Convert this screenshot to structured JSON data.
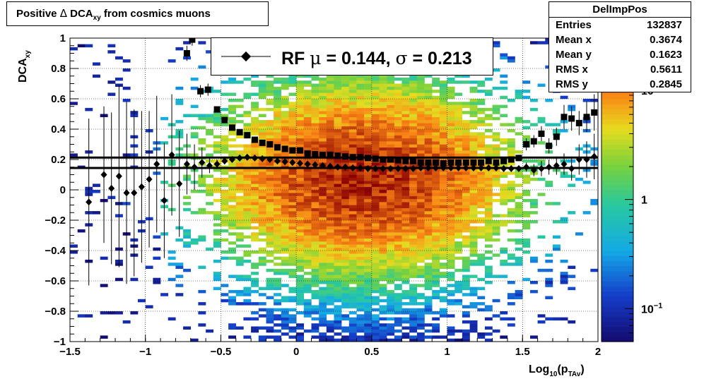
{
  "title": {
    "prefix": "Positive ",
    "delta": "Δ",
    "quantity": " DCA",
    "subscript": "xy",
    "suffix": " from cosmics muons"
  },
  "stats": {
    "name": "DelImpPos",
    "rows": [
      {
        "label": "Entries",
        "value": "132837"
      },
      {
        "label": "Mean x",
        "value": "0.3674"
      },
      {
        "label": "Mean y",
        "value": "0.1623"
      },
      {
        "label": "RMS x",
        "value": "0.5611"
      },
      {
        "label": "RMS y",
        "value": "0.2845"
      }
    ]
  },
  "legend": {
    "text_rf": "RF ",
    "mu": "μ",
    "text_mu_val": " =  0.144, ",
    "sigma": "σ",
    "text_sigma_val": " =   0.213"
  },
  "chart_data": {
    "type": "heatmap",
    "title": "Positive Δ DCA_xy from cosmics muons",
    "xlabel": "Log10(p_TAv)",
    "ylabel": "DCA_xy",
    "xlim": [
      -1.5,
      2.0
    ],
    "ylim": [
      -1.0,
      1.0
    ],
    "x_ticks": [
      -1.5,
      -1,
      -0.5,
      0,
      0.5,
      1,
      1.5,
      2
    ],
    "x_tick_labels": [
      "−1.5",
      "−1",
      "−0.5",
      "0",
      "0.5",
      "1",
      "1.5",
      "2"
    ],
    "y_ticks": [
      -1,
      -0.8,
      -0.6,
      -0.4,
      -0.2,
      0,
      0.2,
      0.4,
      0.6,
      0.8,
      1
    ],
    "y_tick_labels": [
      "−1",
      "−0.8",
      "−0.6",
      "−0.4",
      "−0.2",
      "0",
      "0.2",
      "0.4",
      "0.6",
      "0.8",
      "1"
    ],
    "grid": true,
    "z_scale": "log",
    "z_range": [
      0.05,
      30
    ],
    "z_tick_values": [
      0.1,
      1,
      10
    ],
    "z_tick_labels": [
      {
        "base": "10",
        "exp": "−1"
      },
      {
        "base": "1",
        "exp": ""
      },
      {
        "base": "10",
        "exp": ""
      }
    ],
    "density_peak": {
      "x": 0.45,
      "y": 0.08
    },
    "hlines": [
      0.144,
      0.213
    ],
    "series": [
      {
        "name": "Mean (squares)",
        "marker": "square",
        "x": [
          -0.725,
          -0.69,
          -0.635,
          -0.585,
          -0.525,
          -0.475,
          -0.425,
          -0.375,
          -0.325,
          -0.275,
          -0.225,
          -0.175,
          -0.125,
          -0.075,
          -0.025,
          0.025,
          0.075,
          0.125,
          0.175,
          0.225,
          0.275,
          0.325,
          0.375,
          0.425,
          0.475,
          0.525,
          0.575,
          0.625,
          0.675,
          0.725,
          0.775,
          0.825,
          0.875,
          0.925,
          0.975,
          1.025,
          1.075,
          1.125,
          1.175,
          1.225,
          1.275,
          1.325,
          1.375,
          1.425,
          1.475,
          1.525,
          1.575,
          1.625,
          1.675,
          1.725,
          1.775,
          1.825,
          1.875,
          1.925,
          1.975
        ],
        "y": [
          0.9,
          0.99,
          0.65,
          0.66,
          0.53,
          0.46,
          0.41,
          0.38,
          0.36,
          0.33,
          0.31,
          0.3,
          0.28,
          0.27,
          0.26,
          0.26,
          0.24,
          0.235,
          0.23,
          0.23,
          0.225,
          0.22,
          0.215,
          0.215,
          0.21,
          0.205,
          0.2,
          0.2,
          0.195,
          0.19,
          0.19,
          0.18,
          0.18,
          0.18,
          0.175,
          0.18,
          0.18,
          0.18,
          0.18,
          0.18,
          0.19,
          0.18,
          0.19,
          0.2,
          0.21,
          0.3,
          0.32,
          0.37,
          0.29,
          0.35,
          0.48,
          0.47,
          0.44,
          0.48,
          0.51
        ],
        "yerr": [
          0.05,
          0.04,
          0.04,
          0.04,
          0.02,
          0.015,
          0.01,
          0.01,
          0.01,
          0.01,
          0.01,
          0.01,
          0.01,
          0.01,
          0.01,
          0.01,
          0.01,
          0.01,
          0.01,
          0.01,
          0.01,
          0.01,
          0.01,
          0.01,
          0.01,
          0.01,
          0.01,
          0.01,
          0.01,
          0.01,
          0.01,
          0.01,
          0.01,
          0.01,
          0.01,
          0.01,
          0.01,
          0.01,
          0.01,
          0.01,
          0.01,
          0.01,
          0.01,
          0.01,
          0.02,
          0.04,
          0.04,
          0.05,
          0.05,
          0.06,
          0.08,
          0.08,
          0.08,
          0.1,
          0.12
        ]
      },
      {
        "name": "RF μ",
        "marker": "diamond",
        "x": [
          -1.375,
          -1.275,
          -1.225,
          -1.175,
          -1.125,
          -1.075,
          -1.025,
          -0.975,
          -0.925,
          -0.875,
          -0.825,
          -0.775,
          -0.725,
          -0.675,
          -0.625,
          -0.575,
          -0.525,
          -0.475,
          -0.425,
          -0.375,
          -0.325,
          -0.275,
          -0.225,
          -0.175,
          -0.125,
          -0.075,
          -0.025,
          0.025,
          0.075,
          0.125,
          0.175,
          0.225,
          0.275,
          0.325,
          0.375,
          0.425,
          0.475,
          0.525,
          0.575,
          0.625,
          0.675,
          0.725,
          0.775,
          0.825,
          0.875,
          0.925,
          0.975,
          1.025,
          1.075,
          1.125,
          1.175,
          1.225,
          1.275,
          1.325,
          1.375,
          1.425,
          1.475,
          1.525,
          1.575,
          1.625,
          1.675,
          1.725,
          1.775,
          1.825,
          1.875,
          1.925,
          1.975
        ],
        "y": [
          -0.08,
          0.1,
          0.01,
          0.09,
          -0.02,
          -0.02,
          0.02,
          0.07,
          0.17,
          -0.07,
          0.23,
          0.04,
          0.17,
          0.15,
          0.18,
          0.16,
          0.17,
          0.19,
          0.2,
          0.21,
          0.215,
          0.21,
          0.205,
          0.2,
          0.19,
          0.185,
          0.18,
          0.175,
          0.17,
          0.165,
          0.16,
          0.155,
          0.15,
          0.15,
          0.145,
          0.145,
          0.14,
          0.14,
          0.14,
          0.14,
          0.14,
          0.14,
          0.14,
          0.145,
          0.145,
          0.145,
          0.145,
          0.145,
          0.145,
          0.145,
          0.145,
          0.145,
          0.145,
          0.145,
          0.14,
          0.14,
          0.14,
          0.15,
          0.13,
          0.14,
          0.15,
          0.16,
          0.17,
          0.14,
          0.2,
          0.2,
          0.22
        ],
        "yerr": [
          0.55,
          0.45,
          0.5,
          0.6,
          0.6,
          0.55,
          0.5,
          0.45,
          0.45,
          0.38,
          0.4,
          0.35,
          0.2,
          0.15,
          0.1,
          0.05,
          0.03,
          0.02,
          0.01,
          0.01,
          0.01,
          0.01,
          0.01,
          0.01,
          0.01,
          0.01,
          0.01,
          0.01,
          0.01,
          0.01,
          0.01,
          0.01,
          0.01,
          0.01,
          0.01,
          0.01,
          0.01,
          0.01,
          0.01,
          0.01,
          0.01,
          0.01,
          0.01,
          0.01,
          0.01,
          0.01,
          0.01,
          0.01,
          0.01,
          0.01,
          0.01,
          0.01,
          0.01,
          0.01,
          0.02,
          0.02,
          0.02,
          0.03,
          0.04,
          0.05,
          0.05,
          0.06,
          0.07,
          0.08,
          0.1,
          0.12,
          0.15
        ]
      }
    ]
  }
}
